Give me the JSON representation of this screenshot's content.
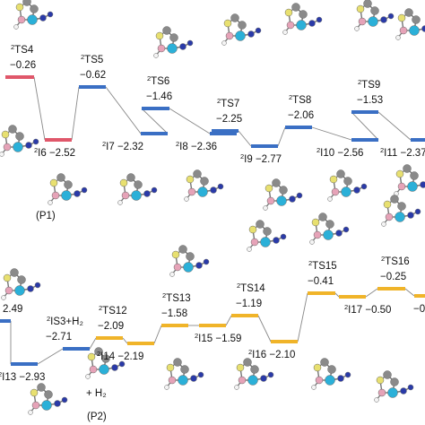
{
  "pathways": [
    {
      "marker": "(P1)",
      "colors": {
        "ts": "#3a6fc4",
        "min": "#e0576a",
        "first": "#e0576a",
        "connector": "#888888"
      },
      "states": [
        {
          "id": "ts4",
          "label": "TS4",
          "energy": "−0.26",
          "type": "ts"
        },
        {
          "id": "i6",
          "label": "I6",
          "energy": "−2.52",
          "type": "min"
        },
        {
          "id": "ts5",
          "label": "TS5",
          "energy": "−0.62",
          "type": "ts"
        },
        {
          "id": "i7",
          "label": "I7",
          "energy": "−2.32",
          "type": "min"
        },
        {
          "id": "ts6",
          "label": "TS6",
          "energy": "−1.46",
          "type": "ts"
        },
        {
          "id": "i8",
          "label": "I8",
          "energy": "−2.36",
          "type": "min"
        },
        {
          "id": "ts7",
          "label": "TS7",
          "energy": "−2.25",
          "type": "ts"
        },
        {
          "id": "i9",
          "label": "I9",
          "energy": "−2.77",
          "type": "min"
        },
        {
          "id": "ts8",
          "label": "TS8",
          "energy": "−2.06",
          "type": "ts"
        },
        {
          "id": "i10",
          "label": "I10",
          "energy": "−2.56",
          "type": "min"
        },
        {
          "id": "ts9",
          "label": "TS9",
          "energy": "−1.53",
          "type": "ts"
        },
        {
          "id": "i11",
          "label": "I11",
          "energy": "−2.37",
          "type": "min"
        }
      ]
    },
    {
      "marker": "(P2)",
      "colors": {
        "ts": "#f0b429",
        "min": "#3a6fc4",
        "connector": "#888888"
      },
      "states": [
        {
          "id": "start",
          "label": "",
          "energy": "2.49",
          "type": "min"
        },
        {
          "id": "i13",
          "label": "I13",
          "energy": "−2.93",
          "type": "min"
        },
        {
          "id": "is3",
          "label": "IS3+H₂",
          "energy": "−2.71",
          "type": "min"
        },
        {
          "id": "ts12",
          "label": "TS12",
          "energy": "−2.09",
          "type": "ts"
        },
        {
          "id": "i14",
          "label": "I14",
          "energy": "−2.19",
          "type": "ts"
        },
        {
          "id": "ts13",
          "label": "TS13",
          "energy": "−1.58",
          "type": "ts"
        },
        {
          "id": "i15",
          "label": "I15",
          "energy": "−1.59",
          "type": "ts"
        },
        {
          "id": "ts14",
          "label": "TS14",
          "energy": "−1.19",
          "type": "ts"
        },
        {
          "id": "i16",
          "label": "I16",
          "energy": "−2.10",
          "type": "ts"
        },
        {
          "id": "ts15",
          "label": "TS15",
          "energy": "−0.41",
          "type": "ts"
        },
        {
          "id": "i17",
          "label": "I17",
          "energy": "−0.50",
          "type": "ts"
        },
        {
          "id": "ts16",
          "label": "TS16",
          "energy": "−0.25",
          "type": "ts"
        },
        {
          "id": "tail",
          "label": "",
          "energy": "−0",
          "type": "ts"
        }
      ],
      "h2_note": "+ H₂"
    }
  ],
  "spin_superscript": "2",
  "atom_colors": {
    "carbon": "#8a8a8a",
    "metal": "#2bb0d8",
    "nitrogen": "#2a3aa8",
    "boron": "#e6a3b8",
    "sulfur": "#e8e070",
    "hydrogen": "#f4f4f4"
  }
}
